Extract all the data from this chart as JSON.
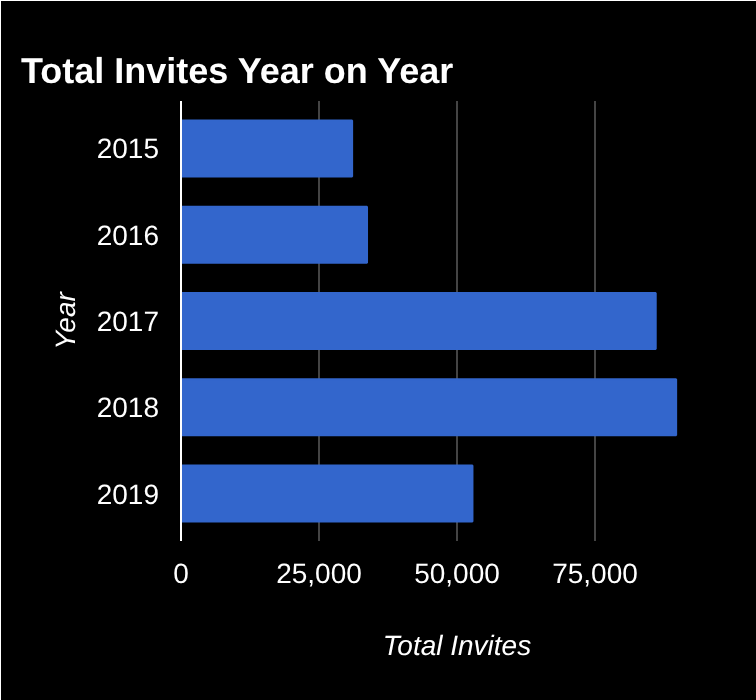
{
  "chart_data": {
    "type": "bar",
    "orientation": "horizontal",
    "title": "Total Invites Year on Year",
    "xlabel": "Total Invites",
    "ylabel": "Year",
    "categories": [
      "2015",
      "2016",
      "2017",
      "2018",
      "2019"
    ],
    "values": [
      31000,
      33700,
      86000,
      89700,
      52800
    ],
    "color": "#3366cc",
    "xlim": [
      0,
      100000
    ],
    "xticks": [
      0,
      {
        "value": 25000,
        "label": "25,000"
      },
      {
        "value": 50000,
        "label": "50,000"
      },
      {
        "value": 75000,
        "label": "75,000"
      },
      {
        "value": 100000,
        "label": null
      }
    ],
    "grid": "x"
  }
}
